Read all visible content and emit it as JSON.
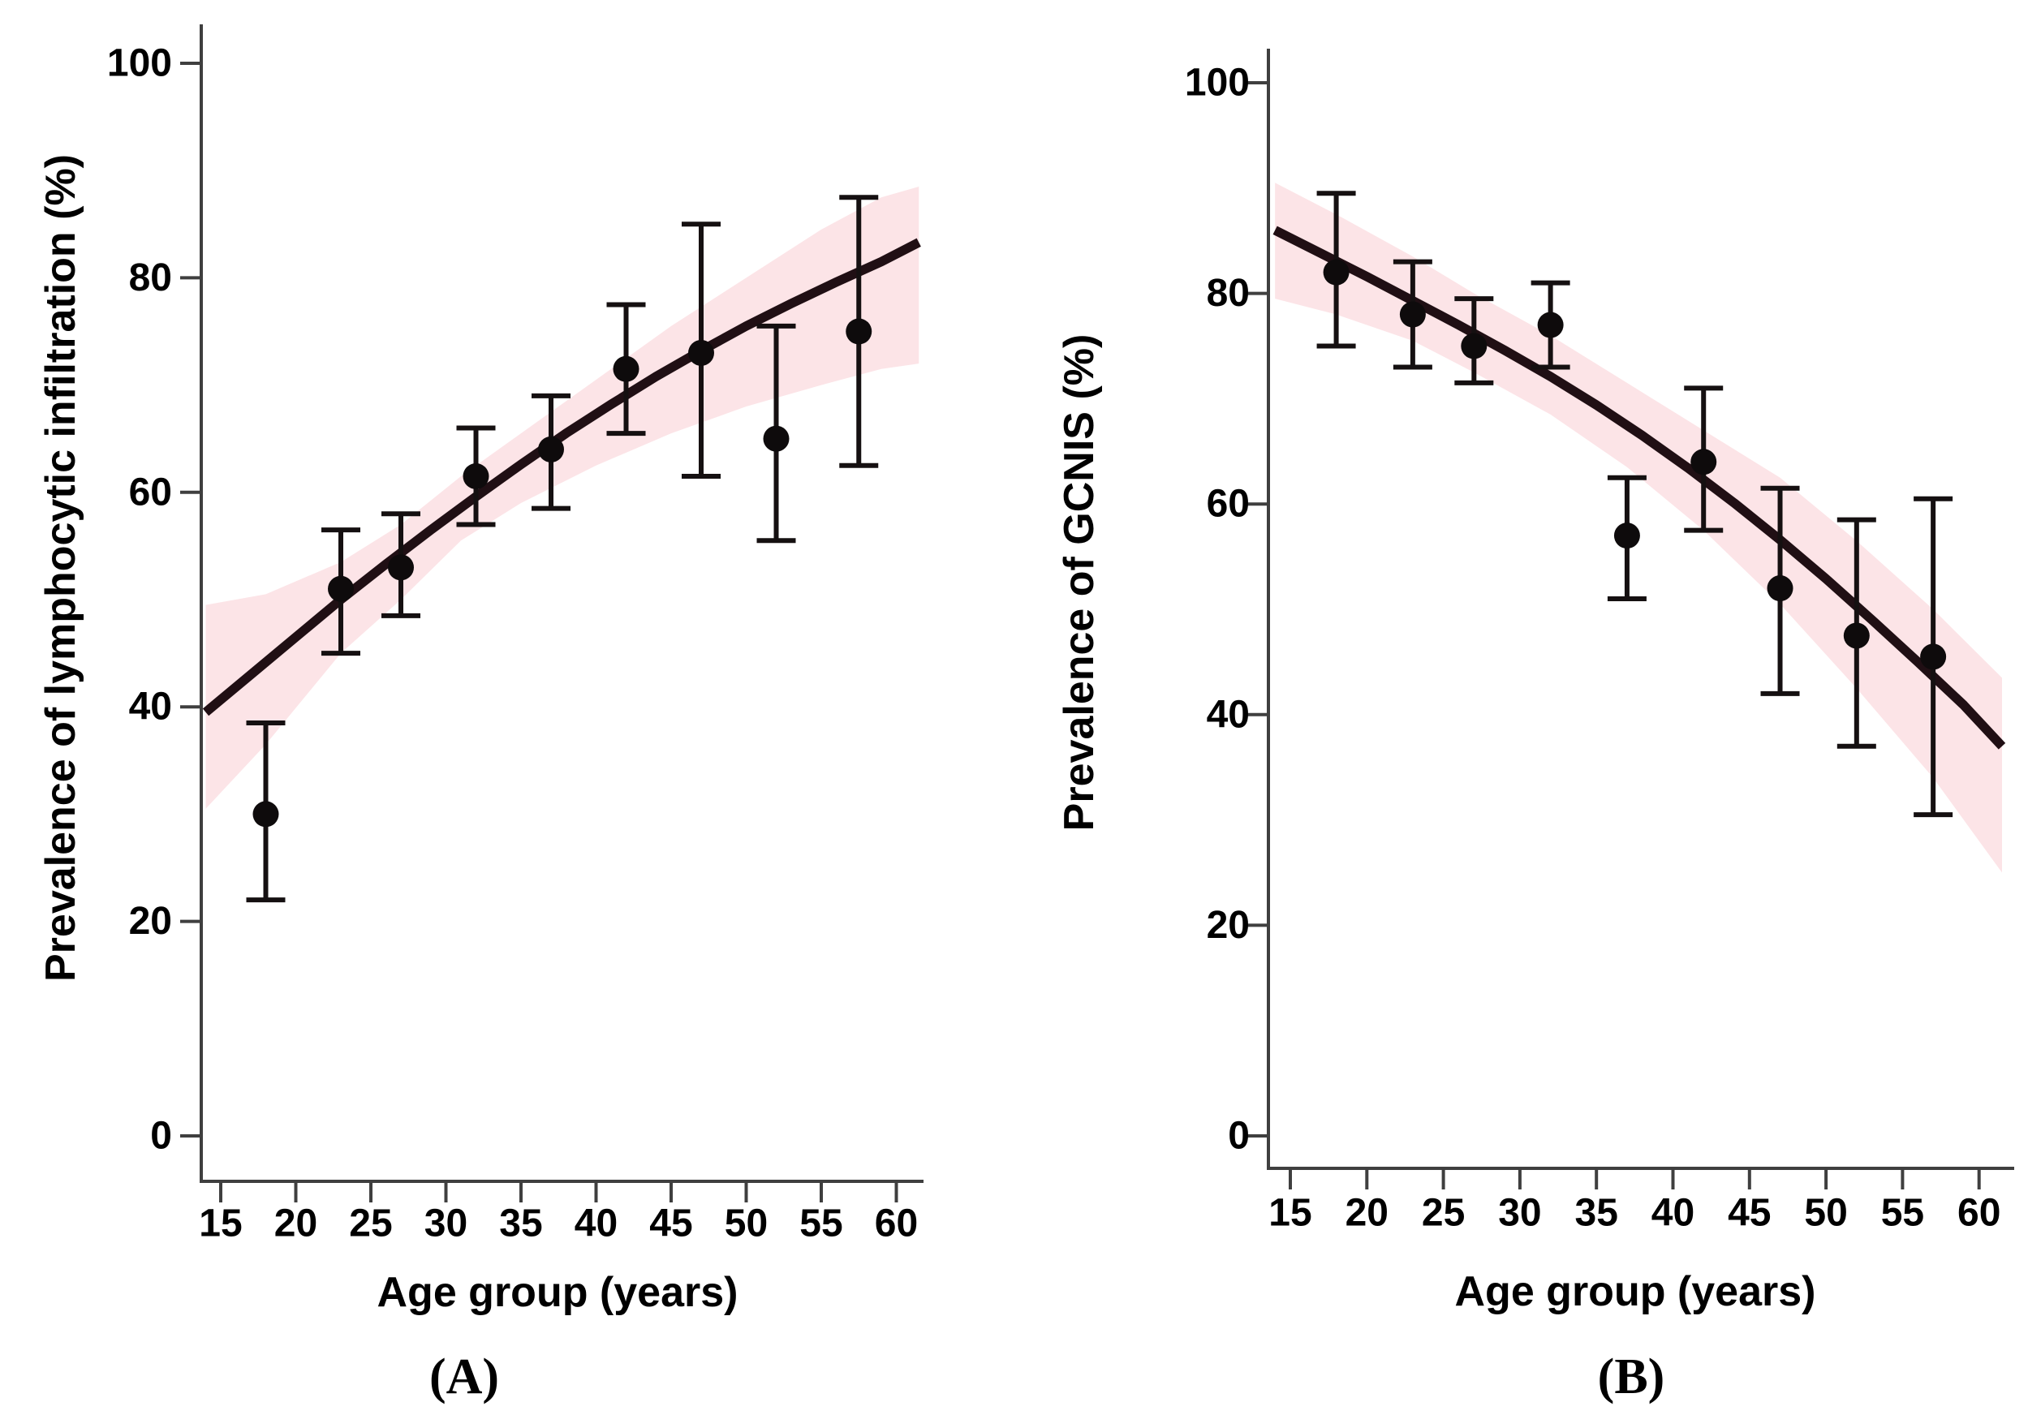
{
  "figure": {
    "background": "#ffffff",
    "colors": {
      "band": "#fce4e7",
      "curve": "#200f14",
      "point": "#0e0b0c",
      "error": "#151011",
      "axis": "#3f3f3f",
      "text": "#000000"
    }
  },
  "chart_data": [
    {
      "type": "scatter",
      "panel": "A",
      "title": "(A)",
      "xlabel": "Age group (years)",
      "ylabel": "Prevalence of lymphocytic infiltration (%)",
      "xlim": [
        13,
        62.5
      ],
      "ylim": [
        0,
        105
      ],
      "x_ticks": [
        15,
        20,
        25,
        30,
        35,
        40,
        45,
        50,
        55,
        60
      ],
      "y_ticks": [
        0,
        20,
        40,
        60,
        80,
        100
      ],
      "grid": false,
      "legend": "none",
      "points": {
        "x": [
          18,
          23,
          27,
          32,
          37,
          42,
          47,
          52,
          57.5
        ],
        "y": [
          30,
          51,
          53,
          61.5,
          64,
          71.5,
          73,
          65,
          75
        ],
        "ci_low": [
          22,
          45,
          48.5,
          57,
          58.5,
          65.5,
          61.5,
          55.5,
          62.5
        ],
        "ci_high": [
          38.5,
          56.5,
          58,
          66,
          69,
          77.5,
          85,
          75.5,
          87.5
        ]
      },
      "fit_curve": {
        "x": [
          14,
          17,
          20,
          23,
          26,
          29,
          32,
          35,
          38,
          41,
          44,
          47,
          50,
          53,
          56,
          59,
          61.5
        ],
        "y": [
          39.5,
          43,
          46.5,
          50,
          53.3,
          56.5,
          59.6,
          62.6,
          65.5,
          68.2,
          70.8,
          73.2,
          75.5,
          77.6,
          79.6,
          81.5,
          83.3
        ]
      },
      "confidence_band": {
        "x": [
          14,
          18,
          23,
          27,
          31,
          35,
          40,
          45,
          50,
          55,
          59,
          61.5
        ],
        "upper": [
          49.5,
          50.5,
          53.5,
          57,
          61.5,
          65.5,
          70.5,
          75.5,
          80,
          84.5,
          87.5,
          88.5
        ],
        "lower": [
          30.5,
          36.5,
          45,
          50,
          55.5,
          59,
          62.5,
          65.5,
          68,
          70,
          71.5,
          72
        ]
      }
    },
    {
      "type": "scatter",
      "panel": "B",
      "title": "(B)",
      "xlabel": "Age group (years)",
      "ylabel": "Prevalence of GCNIS (%)",
      "xlim": [
        13,
        62.5
      ],
      "ylim": [
        0,
        105
      ],
      "x_ticks": [
        15,
        20,
        25,
        30,
        35,
        40,
        45,
        50,
        55,
        60
      ],
      "y_ticks": [
        0,
        20,
        40,
        60,
        80,
        100
      ],
      "grid": false,
      "legend": "none",
      "points": {
        "x": [
          18,
          23,
          27,
          32,
          37,
          42,
          47,
          52,
          57
        ],
        "y": [
          82,
          78,
          75,
          77,
          57,
          64,
          52,
          47.5,
          45.5
        ],
        "ci_low": [
          75,
          73,
          71.5,
          73,
          51,
          57.5,
          42,
          37,
          30.5
        ],
        "ci_high": [
          89.5,
          83,
          79.5,
          81,
          62.5,
          71,
          61.5,
          58.5,
          60.5
        ]
      },
      "fit_curve": {
        "x": [
          14,
          17,
          20,
          23,
          26,
          29,
          32,
          35,
          38,
          41,
          44,
          47,
          50,
          53,
          56,
          59,
          61.5
        ],
        "y": [
          86,
          83.8,
          81.6,
          79.3,
          77,
          74.6,
          72.1,
          69.4,
          66.5,
          63.4,
          60.1,
          56.6,
          52.9,
          49,
          45,
          40.9,
          37
        ]
      },
      "confidence_band": {
        "x": [
          14,
          18,
          23,
          27,
          32,
          37,
          42,
          47,
          52,
          57,
          61.5
        ],
        "upper": [
          90.5,
          87.5,
          83.5,
          80,
          76,
          71.5,
          67,
          62.5,
          56.5,
          50,
          43.5
        ],
        "lower": [
          79.5,
          78,
          75.5,
          72.5,
          68.5,
          63.5,
          57.5,
          50.5,
          42.5,
          34,
          25
        ]
      }
    }
  ]
}
